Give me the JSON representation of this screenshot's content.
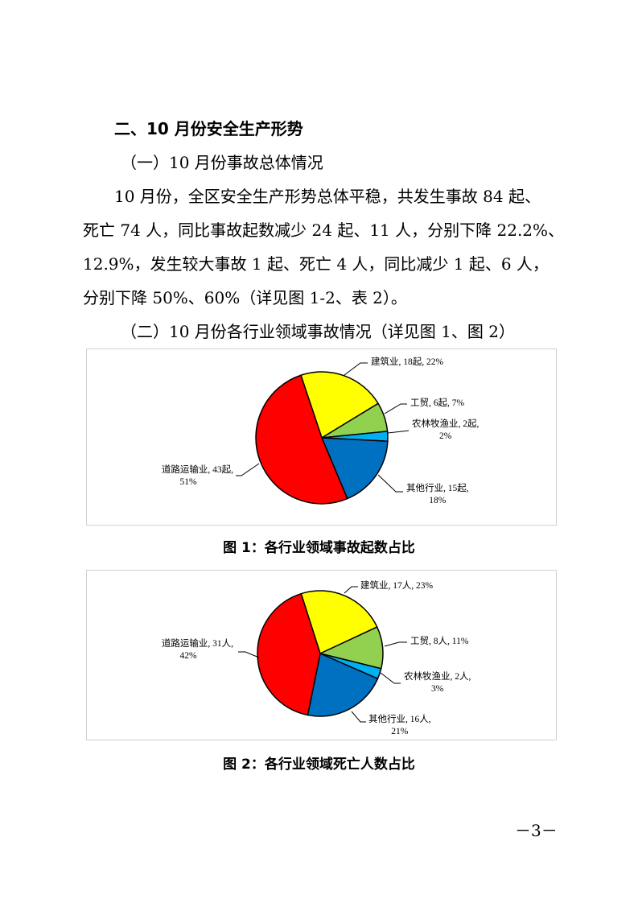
{
  "heading": "二、10 月份安全生产形势",
  "subheading1": "（一）10 月份事故总体情况",
  "paragraph_lines": [
    "10 月份，全区安全生产形势总体平稳，共发生事故 84 起、",
    "死亡 74 人，同比事故起数减少 24 起、11 人，分别下降 22.2%、",
    "12.9%，发生较大事故 1 起、死亡 4 人，同比减少 1 起、6 人，",
    "分别下降 50%、60%（详见图 1-2、表 2）。"
  ],
  "subheading2": "（二）10 月份各行业领域事故情况（详见图 1、图 2）",
  "chart_data": [
    {
      "type": "pie",
      "title": "图 1：各行业领域事故起数占比",
      "unit": "起",
      "slices": [
        {
          "name": "建筑业",
          "value": 18,
          "percent": 22,
          "color": "#FFFF00",
          "label": [
            "建筑业, 18起, 22%"
          ]
        },
        {
          "name": "工贸",
          "value": 6,
          "percent": 7,
          "color": "#92D050",
          "label": [
            "工贸, 6起, 7%"
          ]
        },
        {
          "name": "农林牧渔业",
          "value": 2,
          "percent": 2,
          "color": "#00B0F0",
          "label": [
            "农林牧渔业, 2起,",
            "2%"
          ]
        },
        {
          "name": "其他行业",
          "value": 15,
          "percent": 18,
          "color": "#0070C0",
          "label": [
            "其他行业, 15起,",
            "18%"
          ]
        },
        {
          "name": "道路运输业",
          "value": 43,
          "percent": 51,
          "color": "#FF0000",
          "label": [
            "道路运输业, 43起,",
            "51%"
          ]
        }
      ]
    },
    {
      "type": "pie",
      "title": "图 2：各行业领域死亡人数占比",
      "unit": "人",
      "slices": [
        {
          "name": "建筑业",
          "value": 17,
          "percent": 23,
          "color": "#FFFF00",
          "label": [
            "建筑业, 17人, 23%"
          ]
        },
        {
          "name": "工贸",
          "value": 8,
          "percent": 11,
          "color": "#92D050",
          "label": [
            "工贸, 8人, 11%"
          ]
        },
        {
          "name": "农林牧渔业",
          "value": 2,
          "percent": 3,
          "color": "#00B0F0",
          "label": [
            "农林牧渔业, 2人,",
            "3%"
          ]
        },
        {
          "name": "其他行业",
          "value": 16,
          "percent": 21,
          "color": "#0070C0",
          "label": [
            "其他行业, 16人,",
            "21%"
          ]
        },
        {
          "name": "道路运输业",
          "value": 31,
          "percent": 42,
          "color": "#FF0000",
          "label": [
            "道路运输业, 31人,",
            "42%"
          ]
        }
      ]
    }
  ],
  "page_number": "－3－"
}
